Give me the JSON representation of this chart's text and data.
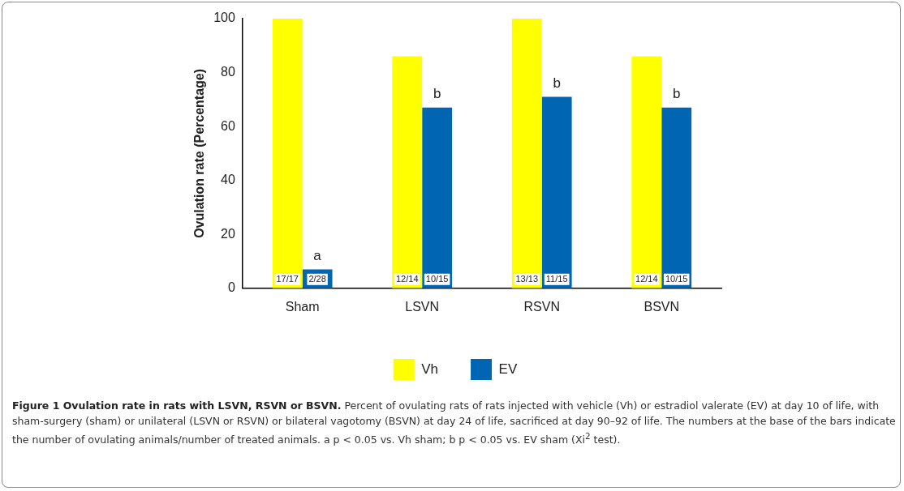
{
  "chart_data": {
    "type": "bar",
    "title": "Figure 1 Ovulation rate in rats with LSVN, RSVN or BSVN.",
    "ylabel": "Ovulation rate (Percentage)",
    "categories": [
      "Sham",
      "LSVN",
      "RSVN",
      "BSVN"
    ],
    "series": [
      {
        "name": "Vh",
        "color": "#ffff00",
        "values": [
          100,
          86,
          100,
          86
        ],
        "value_labels": [
          "17/17",
          "12/14",
          "13/13",
          "12/14"
        ]
      },
      {
        "name": "EV",
        "color": "#0066b3",
        "values": [
          7,
          67,
          71,
          67
        ],
        "value_labels": [
          "2/28",
          "10/15",
          "11/15",
          "10/15"
        ]
      }
    ],
    "ylim": [
      0,
      100
    ],
    "yticks": [
      0,
      20,
      40,
      60,
      80,
      100
    ],
    "grid": false,
    "legend": "bottom",
    "annotations": [
      {
        "text": "a",
        "x": "Sham",
        "y": 7
      },
      {
        "text": "b",
        "x": "LSVN",
        "y": 67
      },
      {
        "text": "b",
        "x": "RSVN",
        "y": 71
      },
      {
        "text": "b",
        "x": "BSVN",
        "y": 67
      },
      "Percent of ovulating rats of rats injected with vehicle (Vh) or estradiol valerate (EV) at day 10 of life, with sham-surgery (sham) or unilateral (LSVN or RSVN) or bilateral vagotomy (BSVN) at day 24 of life, sacrificed at day 90–92 of life. The numbers at the base of the bars indicate the number of ovulating animals/number of treated animals. a p < 0.05 vs. Vh sham; b p < 0.05 vs. EV sham (Xi$^{2}$ test)."
    ]
  }
}
